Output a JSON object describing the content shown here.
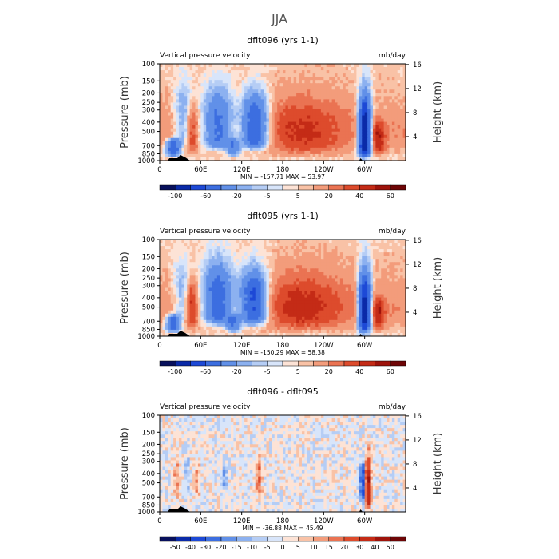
{
  "figure_title": "JJA",
  "chart_data": [
    {
      "type": "heatmap",
      "title": "dflt096 (yrs 1-1)",
      "left_string": "Vertical pressure velocity",
      "right_string": "mb/day",
      "ylabel": "Pressure (mb)",
      "ylabel_right": "Height (km)",
      "x_ticks": [
        "0",
        "60E",
        "120E",
        "180",
        "120W",
        "60W"
      ],
      "x_tick_lon": [
        0,
        60,
        120,
        180,
        240,
        300
      ],
      "xlim": [
        0,
        360
      ],
      "y_ticks": [
        "100",
        "150",
        "200",
        "250",
        "300",
        "400",
        "500",
        "700",
        "850",
        "1000"
      ],
      "y_tick_p": [
        100,
        150,
        200,
        250,
        300,
        400,
        500,
        700,
        850,
        1000
      ],
      "ylim": [
        1000,
        100
      ],
      "height_ticks": [
        "16",
        "12",
        "8",
        "4"
      ],
      "height_tick_km": [
        16,
        12,
        8,
        4
      ],
      "stats": "MIN = -157.71   MAX =  53.97",
      "colorbar_levels": [
        -120,
        -100,
        -80,
        -60,
        -40,
        -20,
        -10,
        -5,
        0,
        5,
        10,
        20,
        30,
        40,
        50,
        60,
        70
      ],
      "colorbar_labels": [
        "-100",
        "-60",
        "-20",
        "-5",
        "5",
        "20",
        "40",
        "60"
      ],
      "colorbar_label_values": [
        -100,
        -60,
        -20,
        -5,
        5,
        20,
        40,
        60
      ],
      "colors": [
        "#08105c",
        "#0a2aa8",
        "#1d49d6",
        "#3c6ee0",
        "#6190e8",
        "#8cb1f0",
        "#b5cdf5",
        "#d8e5fa",
        "#fde3d6",
        "#f9c2a6",
        "#f39c7b",
        "#ea7352",
        "#dd4b2c",
        "#c42b16",
        "#9e130b",
        "#6e0506"
      ],
      "features": [
        {
          "lon": 20,
          "p_top": 600,
          "p_bot": 900,
          "width": 10,
          "value": -70
        },
        {
          "lon": 35,
          "p_top": 150,
          "p_bot": 700,
          "width": 14,
          "value": -30
        },
        {
          "lon": 47,
          "p_top": 250,
          "p_bot": 800,
          "width": 8,
          "value": 30
        },
        {
          "lon": 85,
          "p_top": 180,
          "p_bot": 750,
          "width": 22,
          "value": -60
        },
        {
          "lon": 108,
          "p_top": 600,
          "p_bot": 900,
          "width": 10,
          "value": -40
        },
        {
          "lon": 140,
          "p_top": 200,
          "p_bot": 750,
          "width": 20,
          "value": -80
        },
        {
          "lon": 210,
          "p_top": 200,
          "p_bot": 850,
          "width": 60,
          "value": 25
        },
        {
          "lon": 300,
          "p_top": 200,
          "p_bot": 900,
          "width": 9,
          "value": -120
        },
        {
          "lon": 320,
          "p_top": 400,
          "p_bot": 850,
          "width": 10,
          "value": 35
        }
      ]
    },
    {
      "type": "heatmap",
      "title": "dflt095 (yrs 1-1)",
      "left_string": "Vertical pressure velocity",
      "right_string": "mb/day",
      "ylabel": "Pressure (mb)",
      "ylabel_right": "Height (km)",
      "x_ticks": [
        "0",
        "60E",
        "120E",
        "180",
        "120W",
        "60W"
      ],
      "x_tick_lon": [
        0,
        60,
        120,
        180,
        240,
        300
      ],
      "xlim": [
        0,
        360
      ],
      "y_ticks": [
        "100",
        "150",
        "200",
        "250",
        "300",
        "400",
        "500",
        "700",
        "850",
        "1000"
      ],
      "y_tick_p": [
        100,
        150,
        200,
        250,
        300,
        400,
        500,
        700,
        850,
        1000
      ],
      "ylim": [
        1000,
        100
      ],
      "height_ticks": [
        "16",
        "12",
        "8",
        "4"
      ],
      "height_tick_km": [
        16,
        12,
        8,
        4
      ],
      "stats": "MIN = -150.29   MAX =  58.38",
      "colorbar_levels": [
        -120,
        -100,
        -80,
        -60,
        -40,
        -20,
        -10,
        -5,
        0,
        5,
        10,
        20,
        30,
        40,
        50,
        60,
        70
      ],
      "colorbar_labels": [
        "-100",
        "-60",
        "-20",
        "-5",
        "5",
        "20",
        "40",
        "60"
      ],
      "colorbar_label_values": [
        -100,
        -60,
        -20,
        -5,
        5,
        20,
        40,
        60
      ],
      "colors": [
        "#08105c",
        "#0a2aa8",
        "#1d49d6",
        "#3c6ee0",
        "#6190e8",
        "#8cb1f0",
        "#b5cdf5",
        "#d8e5fa",
        "#fde3d6",
        "#f9c2a6",
        "#f39c7b",
        "#ea7352",
        "#dd4b2c",
        "#c42b16",
        "#9e130b",
        "#6e0506"
      ],
      "features": [
        {
          "lon": 20,
          "p_top": 600,
          "p_bot": 900,
          "width": 10,
          "value": -60
        },
        {
          "lon": 33,
          "p_top": 150,
          "p_bot": 700,
          "width": 14,
          "value": -25
        },
        {
          "lon": 47,
          "p_top": 250,
          "p_bot": 800,
          "width": 8,
          "value": 35
        },
        {
          "lon": 85,
          "p_top": 170,
          "p_bot": 750,
          "width": 22,
          "value": -70
        },
        {
          "lon": 108,
          "p_top": 600,
          "p_bot": 900,
          "width": 10,
          "value": -45
        },
        {
          "lon": 138,
          "p_top": 200,
          "p_bot": 750,
          "width": 20,
          "value": -85
        },
        {
          "lon": 210,
          "p_top": 200,
          "p_bot": 850,
          "width": 60,
          "value": 28
        },
        {
          "lon": 300,
          "p_top": 200,
          "p_bot": 900,
          "width": 9,
          "value": -110
        },
        {
          "lon": 320,
          "p_top": 400,
          "p_bot": 850,
          "width": 10,
          "value": 32
        }
      ]
    },
    {
      "type": "heatmap",
      "title": "dflt096 - dflt095",
      "left_string": "Vertical pressure velocity",
      "right_string": "mb/day",
      "ylabel": "Pressure (mb)",
      "ylabel_right": "Height (km)",
      "x_ticks": [
        "0",
        "60E",
        "120E",
        "180",
        "120W",
        "60W"
      ],
      "x_tick_lon": [
        0,
        60,
        120,
        180,
        240,
        300
      ],
      "xlim": [
        0,
        360
      ],
      "y_ticks": [
        "100",
        "150",
        "200",
        "250",
        "300",
        "400",
        "500",
        "700",
        "850",
        "1000"
      ],
      "y_tick_p": [
        100,
        150,
        200,
        250,
        300,
        400,
        500,
        700,
        850,
        1000
      ],
      "ylim": [
        1000,
        100
      ],
      "height_ticks": [
        "16",
        "12",
        "8",
        "4"
      ],
      "height_tick_km": [
        16,
        12,
        8,
        4
      ],
      "stats": "MIN = -36.88   MAX =  45.49",
      "colorbar_levels": [
        -60,
        -50,
        -40,
        -30,
        -20,
        -15,
        -10,
        -5,
        0,
        5,
        10,
        15,
        20,
        30,
        40,
        50,
        60
      ],
      "colorbar_labels": [
        "-50",
        "-40",
        "-30",
        "-20",
        "-15",
        "-10",
        "-5",
        "0",
        "5",
        "10",
        "15",
        "20",
        "30",
        "40",
        "50"
      ],
      "colorbar_label_values": [
        -50,
        -40,
        -30,
        -20,
        -15,
        -10,
        -5,
        0,
        5,
        10,
        15,
        20,
        30,
        40,
        50
      ],
      "colors": [
        "#08105c",
        "#0a2aa8",
        "#1d49d6",
        "#3c6ee0",
        "#6190e8",
        "#8cb1f0",
        "#b5cdf5",
        "#d8e5fa",
        "#fde3d6",
        "#f9c2a6",
        "#f39c7b",
        "#ea7352",
        "#dd4b2c",
        "#c42b16",
        "#9e130b",
        "#6e0506"
      ],
      "features": [
        {
          "lon": 25,
          "p_top": 300,
          "p_bot": 700,
          "width": 5,
          "value": 15
        },
        {
          "lon": 40,
          "p_top": 250,
          "p_bot": 750,
          "width": 4,
          "value": -10
        },
        {
          "lon": 55,
          "p_top": 300,
          "p_bot": 700,
          "width": 4,
          "value": 12
        },
        {
          "lon": 95,
          "p_top": 300,
          "p_bot": 600,
          "width": 4,
          "value": -15
        },
        {
          "lon": 145,
          "p_top": 250,
          "p_bot": 700,
          "width": 5,
          "value": 18
        },
        {
          "lon": 297,
          "p_top": 300,
          "p_bot": 800,
          "width": 4,
          "value": -35
        },
        {
          "lon": 305,
          "p_top": 250,
          "p_bot": 900,
          "width": 4,
          "value": 42
        }
      ]
    }
  ]
}
